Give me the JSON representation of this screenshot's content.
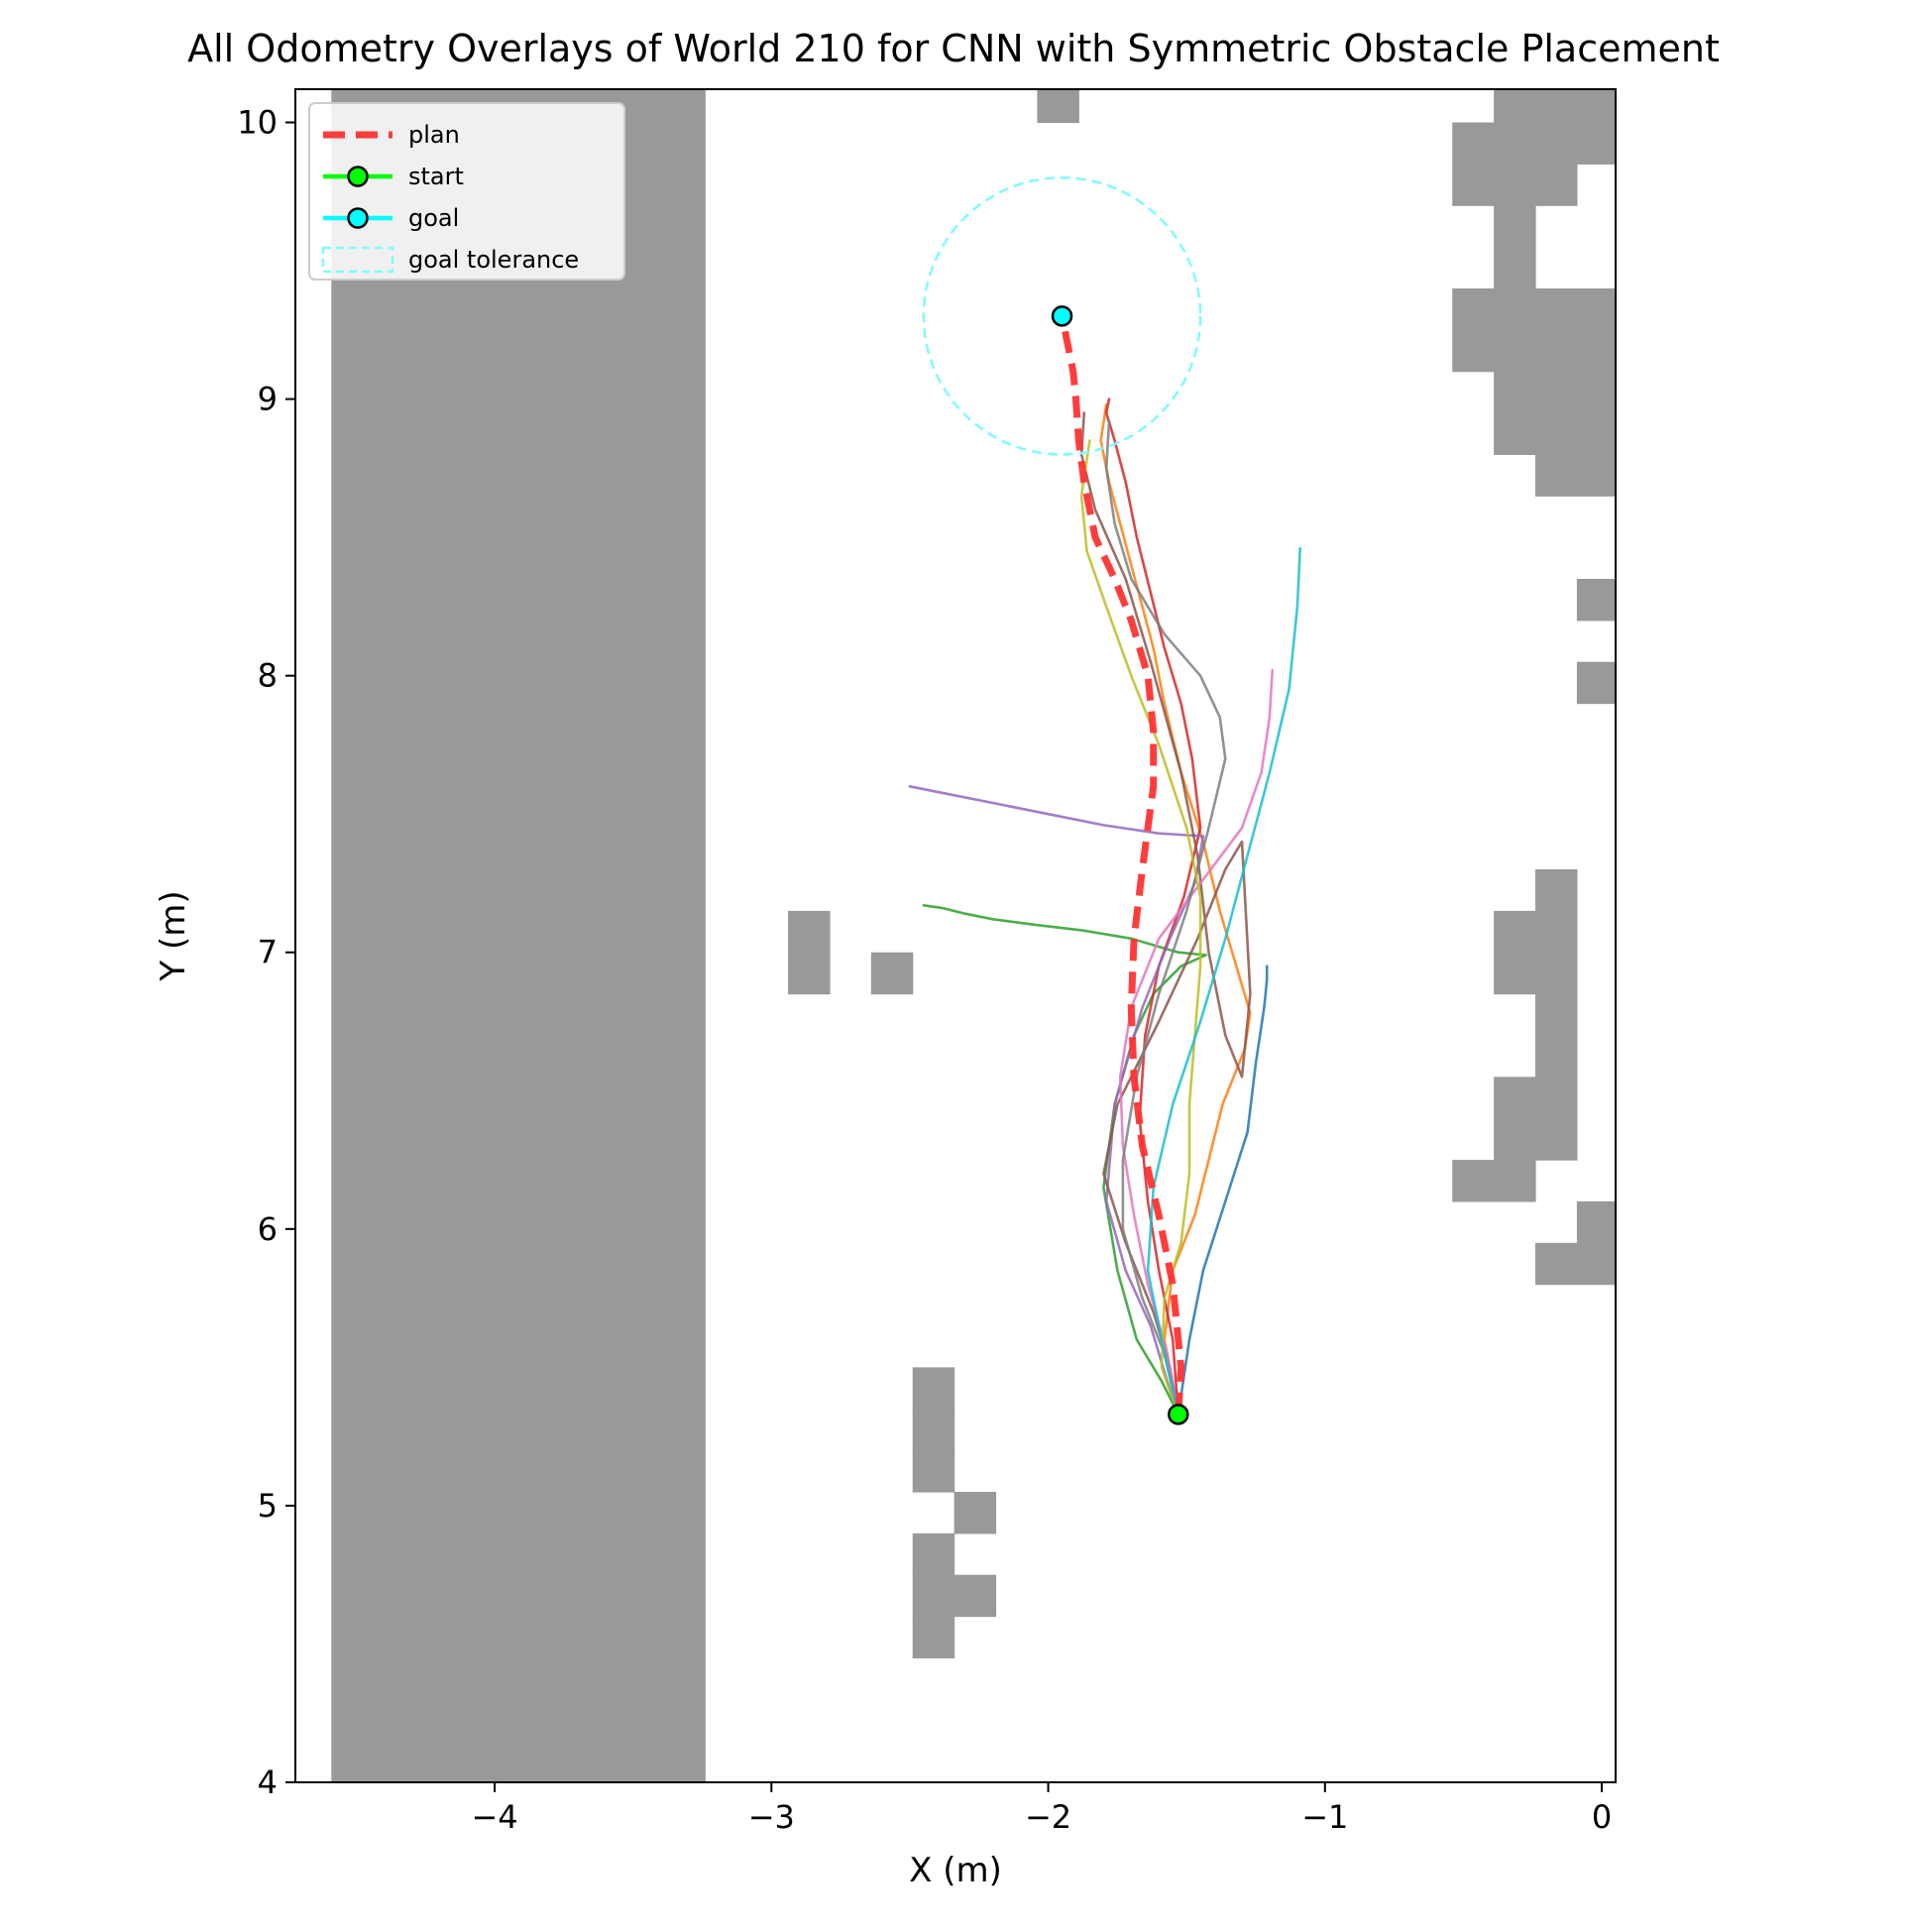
{
  "chart_data": {
    "type": "line",
    "title": "All Odometry Overlays of World 210 for CNN with Symmetric Obstacle Placement",
    "xlabel": "X (m)",
    "ylabel": "Y (m)",
    "xlim": [
      -4.72,
      0.05
    ],
    "ylim": [
      4.0,
      10.12
    ],
    "xticks": [
      -4,
      -3,
      -2,
      -1,
      0
    ],
    "xtick_labels": [
      "−4",
      "−3",
      "−2",
      "−1",
      "0"
    ],
    "yticks": [
      4,
      5,
      6,
      7,
      8,
      9,
      10
    ],
    "ytick_labels": [
      "4",
      "5",
      "6",
      "7",
      "8",
      "9",
      "10"
    ],
    "grid": false,
    "legend_position": "top-left",
    "legend": [
      {
        "label": "plan",
        "color": "#ff3333",
        "style": "dashed"
      },
      {
        "label": "start",
        "color": "#00ff00",
        "style": "solid-marker"
      },
      {
        "label": "goal",
        "color": "#00ffff",
        "style": "solid-marker"
      },
      {
        "label": "goal tolerance",
        "color": "#7ffcfc",
        "style": "dashed-box"
      }
    ],
    "obstacle_color": "#999999",
    "obstacles": {
      "cell_size_m": 0.15,
      "x_origin": -4.59,
      "y_origin": 4.0,
      "cells": [
        [
          0,
          0,
          9,
          41
        ],
        [
          9,
          41,
          2,
          1
        ],
        [
          9,
          42,
          1,
          1
        ],
        [
          9,
          43,
          1,
          1
        ],
        [
          9,
          44,
          1,
          1
        ],
        [
          9,
          45,
          2,
          1
        ],
        [
          9,
          46,
          2,
          1
        ],
        [
          9,
          47,
          2,
          1
        ],
        [
          9,
          48,
          2,
          1
        ],
        [
          9,
          49,
          2,
          1
        ],
        [
          9,
          50,
          2,
          1
        ],
        [
          9,
          51,
          2,
          1
        ],
        [
          9,
          52,
          2,
          1
        ],
        [
          9,
          53,
          2,
          1
        ],
        [
          9,
          54,
          2,
          1
        ],
        [
          9,
          55,
          1,
          1
        ],
        [
          9,
          56,
          2,
          1
        ],
        [
          1,
          10,
          3,
          1
        ],
        [
          1,
          11,
          4,
          1
        ],
        [
          1,
          12,
          5,
          1
        ],
        [
          1,
          13,
          6,
          1
        ],
        [
          1,
          14,
          7,
          1
        ],
        [
          1,
          15,
          7,
          1
        ],
        [
          1,
          16,
          4,
          1
        ],
        [
          1,
          17,
          5,
          1
        ],
        [
          2,
          18,
          2,
          1
        ],
        [
          1,
          19,
          2,
          1
        ],
        [
          2,
          20,
          1,
          1
        ],
        [
          1,
          21,
          2,
          1
        ],
        [
          2,
          22,
          1,
          1
        ],
        [
          1,
          23,
          1,
          1
        ],
        [
          6,
          23,
          2,
          1
        ],
        [
          1,
          24,
          2,
          1
        ],
        [
          1,
          25,
          4,
          1
        ],
        [
          1,
          26,
          4,
          1
        ],
        [
          1,
          27,
          4,
          1
        ],
        [
          1,
          28,
          4,
          1
        ],
        [
          1,
          29,
          7,
          1
        ],
        [
          1,
          30,
          7,
          1
        ],
        [
          1,
          31,
          7,
          1
        ],
        [
          1,
          32,
          7,
          1
        ],
        [
          1,
          33,
          6,
          1
        ],
        [
          1,
          34,
          6,
          1
        ],
        [
          1,
          35,
          6,
          1
        ],
        [
          1,
          36,
          6,
          1
        ],
        [
          1,
          37,
          6,
          1
        ],
        [
          1,
          38,
          6,
          1
        ],
        [
          1,
          39,
          6,
          1
        ],
        [
          1,
          40,
          6,
          1
        ],
        [
          11,
          19,
          1,
          1
        ],
        [
          11,
          20,
          1,
          1
        ],
        [
          13,
          19,
          1,
          1
        ],
        [
          17,
          40,
          1,
          1
        ],
        [
          17,
          41,
          1,
          1
        ],
        [
          17,
          42,
          1,
          1
        ],
        [
          17,
          43,
          1,
          1
        ],
        [
          27,
          38,
          3,
          1
        ],
        [
          27,
          39,
          4,
          1
        ],
        [
          28,
          40,
          3,
          1
        ],
        [
          28,
          41,
          3,
          1
        ],
        [
          29,
          42,
          2,
          1
        ],
        [
          29,
          43,
          2,
          1
        ],
        [
          30,
          35,
          2,
          1
        ],
        [
          27,
          14,
          2,
          1
        ],
        [
          28,
          15,
          2,
          1
        ],
        [
          28,
          16,
          2,
          1
        ],
        [
          29,
          17,
          1,
          1
        ],
        [
          29,
          18,
          1,
          1
        ],
        [
          28,
          19,
          2,
          1
        ],
        [
          28,
          20,
          2,
          1
        ],
        [
          29,
          21,
          1,
          1
        ],
        [
          31,
          11,
          1,
          1
        ],
        [
          31,
          12,
          1,
          1
        ],
        [
          32,
          13,
          1,
          1
        ],
        [
          31,
          14,
          2,
          1
        ],
        [
          32,
          15,
          1,
          1
        ],
        [
          32,
          16,
          1,
          1
        ],
        [
          31,
          17,
          1,
          1
        ],
        [
          29,
          31,
          3,
          1
        ],
        [
          28,
          32,
          5,
          1
        ],
        [
          28,
          33,
          5,
          1
        ],
        [
          27,
          34,
          5,
          1
        ],
        [
          27,
          35,
          3,
          1
        ],
        [
          28,
          36,
          1,
          1
        ],
        [
          28,
          37,
          1,
          1
        ],
        [
          34,
          36,
          1,
          1
        ],
        [
          33,
          37,
          1,
          1
        ],
        [
          34,
          38,
          1,
          1
        ],
        [
          32,
          39,
          1,
          1
        ],
        [
          33,
          40,
          1,
          1
        ],
        [
          33,
          6,
          1,
          1
        ],
        [
          33,
          7,
          1,
          1
        ],
        [
          31,
          8,
          2,
          1
        ],
        [
          33,
          9,
          1,
          1
        ],
        [
          36,
          6,
          2,
          1
        ],
        [
          35,
          7,
          3,
          1
        ],
        [
          36,
          8,
          1,
          1
        ],
        [
          41,
          8,
          2,
          1
        ],
        [
          40,
          9,
          3,
          1
        ],
        [
          42,
          10,
          1,
          1
        ],
        [
          41,
          11,
          1,
          1
        ],
        [
          42,
          12,
          1,
          1
        ],
        [
          43,
          13,
          1,
          1
        ],
        [
          42,
          14,
          1,
          1
        ],
        [
          40,
          15,
          1,
          1
        ],
        [
          41,
          16,
          1,
          1
        ],
        [
          40,
          17,
          1,
          1
        ],
        [
          41,
          18,
          1,
          1
        ],
        [
          39,
          5,
          1,
          1
        ],
        [
          38,
          6,
          3,
          1
        ],
        [
          39,
          7,
          1,
          1
        ],
        [
          44,
          37,
          1,
          1
        ],
        [
          43,
          38,
          1,
          1
        ],
        [
          42,
          39,
          1,
          1
        ],
        [
          48,
          2,
          2,
          1
        ],
        [
          48,
          3,
          2,
          1
        ],
        [
          48,
          4,
          1,
          1
        ],
        [
          48,
          5,
          1,
          1
        ],
        [
          14,
          3,
          1,
          1
        ],
        [
          14,
          4,
          2,
          1
        ],
        [
          14,
          5,
          1,
          1
        ],
        [
          15,
          6,
          1,
          1
        ],
        [
          14,
          7,
          1,
          1
        ],
        [
          14,
          8,
          1,
          1
        ],
        [
          14,
          9,
          1,
          1
        ],
        [
          35,
          30,
          2,
          1
        ],
        [
          33,
          31,
          3,
          1
        ],
        [
          34,
          30,
          1,
          1
        ],
        [
          36,
          29,
          1,
          1
        ],
        [
          30,
          26,
          1,
          1
        ],
        [
          31,
          27,
          1,
          1
        ],
        [
          30,
          28,
          1,
          1
        ],
        [
          30,
          13,
          2,
          1
        ],
        [
          29,
          12,
          1,
          1
        ],
        [
          30,
          12,
          1,
          1
        ]
      ]
    },
    "goal_tolerance_radius_m": 0.5,
    "plan": {
      "x": [
        -1.53,
        -1.52,
        -1.55,
        -1.6,
        -1.66,
        -1.69,
        -1.7,
        -1.69,
        -1.66,
        -1.64,
        -1.62,
        -1.62,
        -1.64,
        -1.7,
        -1.76,
        -1.83,
        -1.87,
        -1.89,
        -1.9,
        -1.91,
        -1.93,
        -1.95
      ],
      "y": [
        5.33,
        5.5,
        5.8,
        6.05,
        6.3,
        6.55,
        6.8,
        7.05,
        7.3,
        7.45,
        7.6,
        7.8,
        8.0,
        8.2,
        8.35,
        8.5,
        8.7,
        8.85,
        9.0,
        9.1,
        9.2,
        9.3
      ]
    },
    "start": {
      "x": -1.53,
      "y": 5.33
    },
    "goal": {
      "x": -1.95,
      "y": 9.3
    },
    "series": [
      {
        "color": "#1f77b4",
        "x": [
          -1.53,
          -1.49,
          -1.44,
          -1.36,
          -1.28,
          -1.25,
          -1.22,
          -1.21,
          -1.21
        ],
        "y": [
          5.33,
          5.6,
          5.85,
          6.1,
          6.35,
          6.6,
          6.8,
          6.9,
          6.95
        ]
      },
      {
        "color": "#ff7f0e",
        "x": [
          -1.53,
          -1.58,
          -1.55,
          -1.47,
          -1.42,
          -1.37,
          -1.29,
          -1.27,
          -1.32,
          -1.38,
          -1.44,
          -1.52,
          -1.58,
          -1.62,
          -1.7,
          -1.78,
          -1.81,
          -1.79
        ],
        "y": [
          5.33,
          5.6,
          5.85,
          6.05,
          6.25,
          6.45,
          6.65,
          6.78,
          6.95,
          7.15,
          7.4,
          7.65,
          7.9,
          8.1,
          8.4,
          8.7,
          8.85,
          8.98
        ]
      },
      {
        "color": "#2ca02c",
        "x": [
          -1.53,
          -1.59,
          -1.68,
          -1.75,
          -1.8,
          -1.76,
          -1.69,
          -1.62,
          -1.52,
          -1.43,
          -1.53,
          -1.7,
          -1.88,
          -2.05,
          -2.2,
          -2.3,
          -2.38,
          -2.45
        ],
        "y": [
          5.33,
          5.45,
          5.6,
          5.85,
          6.15,
          6.45,
          6.7,
          6.85,
          6.95,
          6.99,
          7.0,
          7.05,
          7.08,
          7.1,
          7.12,
          7.14,
          7.16,
          7.17
        ]
      },
      {
        "color": "#d62728",
        "x": [
          -1.53,
          -1.55,
          -1.6,
          -1.64,
          -1.67,
          -1.65,
          -1.6,
          -1.51,
          -1.45,
          -1.48,
          -1.52,
          -1.58,
          -1.63,
          -1.68,
          -1.72,
          -1.76,
          -1.79,
          -1.78
        ],
        "y": [
          5.33,
          5.6,
          5.85,
          6.1,
          6.4,
          6.7,
          6.95,
          7.2,
          7.45,
          7.7,
          7.9,
          8.1,
          8.3,
          8.5,
          8.7,
          8.85,
          8.95,
          9.0
        ]
      },
      {
        "color": "#9467bd",
        "x": [
          -1.53,
          -1.57,
          -1.63,
          -1.72,
          -1.79,
          -1.76,
          -1.66,
          -1.56,
          -1.47,
          -1.44,
          -1.6,
          -1.8,
          -2.0,
          -2.2,
          -2.35,
          -2.5
        ],
        "y": [
          5.33,
          5.45,
          5.65,
          5.85,
          6.1,
          6.45,
          6.8,
          7.05,
          7.25,
          7.42,
          7.43,
          7.46,
          7.5,
          7.54,
          7.57,
          7.6
        ]
      },
      {
        "color": "#8c564b",
        "x": [
          -1.53,
          -1.56,
          -1.62,
          -1.72,
          -1.8,
          -1.75,
          -1.6,
          -1.46,
          -1.36,
          -1.3,
          -1.27,
          -1.3,
          -1.36,
          -1.42,
          -1.46,
          -1.52,
          -1.63,
          -1.72,
          -1.83,
          -1.88,
          -1.87
        ],
        "y": [
          5.33,
          5.5,
          5.7,
          5.95,
          6.2,
          6.45,
          6.75,
          7.05,
          7.3,
          7.4,
          6.85,
          6.55,
          6.7,
          7.0,
          7.35,
          7.65,
          8.05,
          8.35,
          8.6,
          8.8,
          8.95
        ]
      },
      {
        "color": "#e377c2",
        "x": [
          -1.53,
          -1.57,
          -1.64,
          -1.69,
          -1.73,
          -1.74,
          -1.7,
          -1.6,
          -1.45,
          -1.3,
          -1.23,
          -1.2,
          -1.19
        ],
        "y": [
          5.33,
          5.55,
          5.8,
          6.05,
          6.3,
          6.55,
          6.8,
          7.05,
          7.25,
          7.45,
          7.65,
          7.85,
          8.02
        ]
      },
      {
        "color": "#7f7f7f",
        "x": [
          -1.53,
          -1.58,
          -1.66,
          -1.73,
          -1.73,
          -1.68,
          -1.6,
          -1.5,
          -1.42,
          -1.36,
          -1.38,
          -1.45,
          -1.58,
          -1.7,
          -1.76,
          -1.79,
          -1.78
        ],
        "y": [
          5.33,
          5.55,
          5.75,
          6.0,
          6.25,
          6.55,
          6.85,
          7.15,
          7.45,
          7.7,
          7.85,
          8.0,
          8.15,
          8.35,
          8.55,
          8.75,
          8.92
        ]
      },
      {
        "color": "#bcbd22",
        "x": [
          -1.53,
          -1.59,
          -1.58,
          -1.52,
          -1.49,
          -1.49,
          -1.47,
          -1.45,
          -1.45,
          -1.5,
          -1.6,
          -1.7,
          -1.79,
          -1.86,
          -1.88,
          -1.85
        ],
        "y": [
          5.33,
          5.5,
          5.75,
          5.95,
          6.2,
          6.45,
          6.7,
          6.95,
          7.2,
          7.45,
          7.75,
          8.0,
          8.25,
          8.45,
          8.65,
          8.85
        ]
      },
      {
        "color": "#17becf",
        "x": [
          -1.53,
          -1.58,
          -1.64,
          -1.62,
          -1.55,
          -1.45,
          -1.36,
          -1.28,
          -1.2,
          -1.13,
          -1.1,
          -1.09
        ],
        "y": [
          5.33,
          5.55,
          5.85,
          6.15,
          6.45,
          6.75,
          7.05,
          7.35,
          7.65,
          7.95,
          8.25,
          8.46
        ]
      }
    ]
  }
}
